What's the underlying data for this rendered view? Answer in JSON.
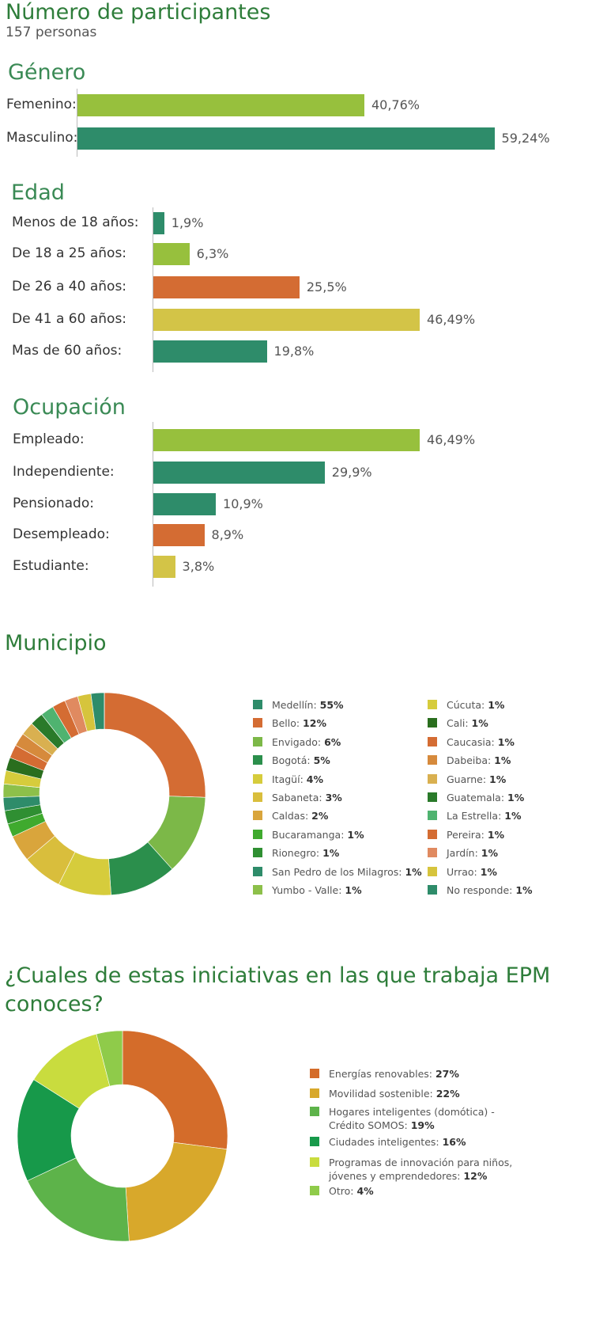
{
  "header": {
    "title": "Número de participantes",
    "subtitle": "157 personas"
  },
  "colors": {
    "green_light": "#97c03d",
    "teal": "#2e8c6a",
    "orange": "#d46c33",
    "mustard": "#d3c447"
  },
  "chart_data": [
    {
      "id": "genero",
      "type": "bar",
      "title": "Género",
      "categories": [
        "Femenino:",
        "Masculino:"
      ],
      "values": [
        40.76,
        59.24
      ],
      "value_labels": [
        "40,76%",
        "59,24%"
      ],
      "colors": [
        "#97c03d",
        "#2e8c6a"
      ]
    },
    {
      "id": "edad",
      "type": "bar",
      "title": "Edad",
      "categories": [
        "Menos de 18 años:",
        "De 18 a 25 años:",
        "De 26 a 40 años:",
        "De 41 a 60 años:",
        "Mas de 60 años:"
      ],
      "values": [
        1.9,
        6.3,
        25.5,
        46.49,
        19.8
      ],
      "value_labels": [
        "1,9%",
        "6,3%",
        "25,5%",
        "46,49%",
        "19,8%"
      ],
      "colors": [
        "#2e8c6a",
        "#97c03d",
        "#d46c33",
        "#d3c447",
        "#2e8c6a"
      ]
    },
    {
      "id": "ocupacion",
      "type": "bar",
      "title": "Ocupación",
      "categories": [
        "Empleado:",
        "Independiente:",
        "Pensionado:",
        "Desempleado:",
        "Estudiante:"
      ],
      "values": [
        46.49,
        29.9,
        10.9,
        8.9,
        3.8
      ],
      "value_labels": [
        "46,49%",
        "29,9%",
        "10,9%",
        "8,9%",
        "3,8%"
      ],
      "colors": [
        "#97c03d",
        "#2e8c6a",
        "#2e8c6a",
        "#d46c33",
        "#d3c447"
      ]
    },
    {
      "id": "municipio",
      "type": "pie",
      "title": "Municipio",
      "slices": [
        {
          "name": "Medellín",
          "pct": "55%",
          "value": 55,
          "color": "#2e8c6a"
        },
        {
          "name": "Bello",
          "pct": "12%",
          "value": 12,
          "color": "#d46c33"
        },
        {
          "name": "Envigado",
          "pct": "6%",
          "value": 6,
          "color": "#7cb848"
        },
        {
          "name": "Bogotá",
          "pct": "5%",
          "value": 5,
          "color": "#2b8f4c"
        },
        {
          "name": "Itagüí",
          "pct": "4%",
          "value": 4,
          "color": "#d6cc3c"
        },
        {
          "name": "Sabaneta",
          "pct": "3%",
          "value": 3,
          "color": "#d9be3c"
        },
        {
          "name": "Caldas",
          "pct": "2%",
          "value": 2,
          "color": "#d9a53c"
        },
        {
          "name": "Bucaramanga",
          "pct": "1%",
          "value": 1,
          "color": "#3faa2e"
        },
        {
          "name": "Rionegro",
          "pct": "1%",
          "value": 1,
          "color": "#2f8f32"
        },
        {
          "name": "San Pedro de los Milagros",
          "pct": "1%",
          "value": 1,
          "color": "#2e8c6a"
        },
        {
          "name": "Yumbo - Valle",
          "pct": "1%",
          "value": 1,
          "color": "#8dc04a"
        },
        {
          "name": "Cúcuta",
          "pct": "1%",
          "value": 1,
          "color": "#d6cc3c"
        },
        {
          "name": "Cali",
          "pct": "1%",
          "value": 1,
          "color": "#2a6e1e"
        },
        {
          "name": "Caucasia",
          "pct": "1%",
          "value": 1,
          "color": "#d46c33"
        },
        {
          "name": "Dabeiba",
          "pct": "1%",
          "value": 1,
          "color": "#d68a3c"
        },
        {
          "name": "Guarne",
          "pct": "1%",
          "value": 1,
          "color": "#d9b050"
        },
        {
          "name": "Guatemala",
          "pct": "1%",
          "value": 1,
          "color": "#2a7a2a"
        },
        {
          "name": "La Estrella",
          "pct": "1%",
          "value": 1,
          "color": "#4fb370"
        },
        {
          "name": "Pereira",
          "pct": "1%",
          "value": 1,
          "color": "#d46c33"
        },
        {
          "name": "Jardín",
          "pct": "1%",
          "value": 1,
          "color": "#e08a60"
        },
        {
          "name": "Urrao",
          "pct": "1%",
          "value": 1,
          "color": "#d6c43c"
        },
        {
          "name": "No responde",
          "pct": "1%",
          "value": 1,
          "color": "#2e8c6a"
        }
      ]
    },
    {
      "id": "iniciativas",
      "type": "pie",
      "title": "¿Cuales de estas iniciativas en las que trabaja EPM conoces?",
      "slices": [
        {
          "name": "Energías renovables",
          "pct": "27%",
          "value": 27,
          "color": "#d46c2a"
        },
        {
          "name": "Movilidad sostenible",
          "pct": "22%",
          "value": 22,
          "color": "#d8a82b"
        },
        {
          "name": "Hogares inteligentes (domótica) - Crédito SOMOS",
          "name_line1": "Hogares inteligentes (domótica) -",
          "name_line2": "Crédito SOMOS",
          "pct": "19%",
          "value": 19,
          "color": "#5db34a"
        },
        {
          "name": "Ciudades inteligentes",
          "pct": "16%",
          "value": 16,
          "color": "#17994a"
        },
        {
          "name": "Programas de innovación para niños, jóvenes y emprendedores",
          "name_line1": "Programas de innovación para niños,",
          "name_line2": "jóvenes y emprendedores",
          "pct": "12%",
          "value": 12,
          "color": "#c9dc3e"
        },
        {
          "name": "Otro",
          "pct": "4%",
          "value": 4,
          "color": "#8fcb4a"
        }
      ]
    }
  ]
}
